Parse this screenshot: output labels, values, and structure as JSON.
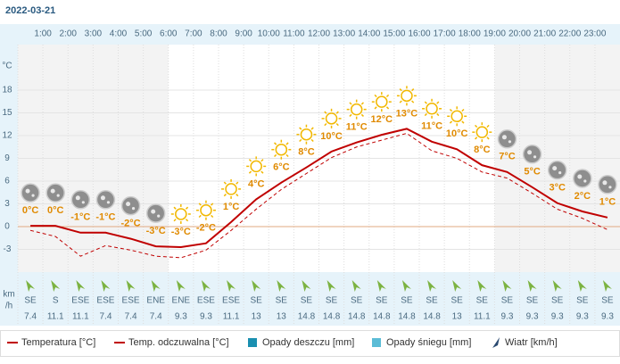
{
  "chart_data": {
    "type": "line",
    "title": "2022-03-21",
    "y_unit": "°C",
    "categories": [
      null,
      "1:00",
      "2:00",
      "3:00",
      "4:00",
      "5:00",
      "6:00",
      "7:00",
      "8:00",
      "9:00",
      "10:00",
      "11:00",
      "12:00",
      "13:00",
      "14:00",
      "15:00",
      "16:00",
      "17:00",
      "18:00",
      "19:00",
      "20:00",
      "21:00",
      "22:00",
      "23:00"
    ],
    "ylim": [
      -6,
      24
    ],
    "yticks": [
      -3,
      0,
      3,
      6,
      9,
      12,
      15,
      18
    ],
    "grid": true,
    "series": [
      {
        "name": "Temperatura [°C]",
        "color": "#c00000",
        "values": [
          0.1,
          0.1,
          -0.8,
          -0.8,
          -1.6,
          -2.6,
          -2.7,
          -2.2,
          0.6,
          3.6,
          5.8,
          7.8,
          9.9,
          11.1,
          12.1,
          12.9,
          11.2,
          10.2,
          8.1,
          7.2,
          5.2,
          3.1,
          2.0,
          1.2
        ],
        "value_labels": [
          "0°C",
          "0°C",
          "-1°C",
          "-1°C",
          "-2°C",
          "-3°C",
          "-3°C",
          "-2°C",
          "1°C",
          "4°C",
          "6°C",
          "8°C",
          "10°C",
          "11°C",
          "12°C",
          "13°C",
          "11°C",
          "10°C",
          "8°C",
          "7°C",
          "5°C",
          "3°C",
          "2°C",
          "1°C"
        ]
      },
      {
        "name": "Temp. odczuwalna [°C]",
        "color": "#c00000",
        "dashed": true,
        "values": [
          -0.5,
          -1.3,
          -3.9,
          -2.5,
          -3.1,
          -3.9,
          -4.1,
          -3.1,
          -0.5,
          2.3,
          4.9,
          7.0,
          9.1,
          10.5,
          11.4,
          12.3,
          10.0,
          9.0,
          7.2,
          6.4,
          4.4,
          2.3,
          1.1,
          -0.4
        ]
      }
    ],
    "precipitation": [
      {
        "name": "Opady deszczu [mm]",
        "color": "#1a8fb0"
      },
      {
        "name": "Opady śniegu [mm]",
        "color": "#5bbcd6"
      }
    ],
    "wind": {
      "name": "Wiatr [km/h]",
      "unit_lines": [
        "km",
        "/h"
      ],
      "directions": [
        "SE",
        "S",
        "ESE",
        "ESE",
        "ESE",
        "ENE",
        "ENE",
        "ESE",
        "ESE",
        "SE",
        "SE",
        "SE",
        "SE",
        "SE",
        "SE",
        "SE",
        "SE",
        "SE",
        "SE",
        "SE",
        "SE",
        "SE",
        "SE",
        "SE"
      ],
      "values": [
        7.4,
        11.1,
        11.1,
        7.4,
        7.4,
        7.4,
        9.3,
        9.3,
        11.1,
        13,
        13,
        14.8,
        14.8,
        14.8,
        14.8,
        14.8,
        14.8,
        13,
        11.1,
        9.3,
        9.3,
        9.3,
        9.3,
        9.3
      ]
    }
  }
}
